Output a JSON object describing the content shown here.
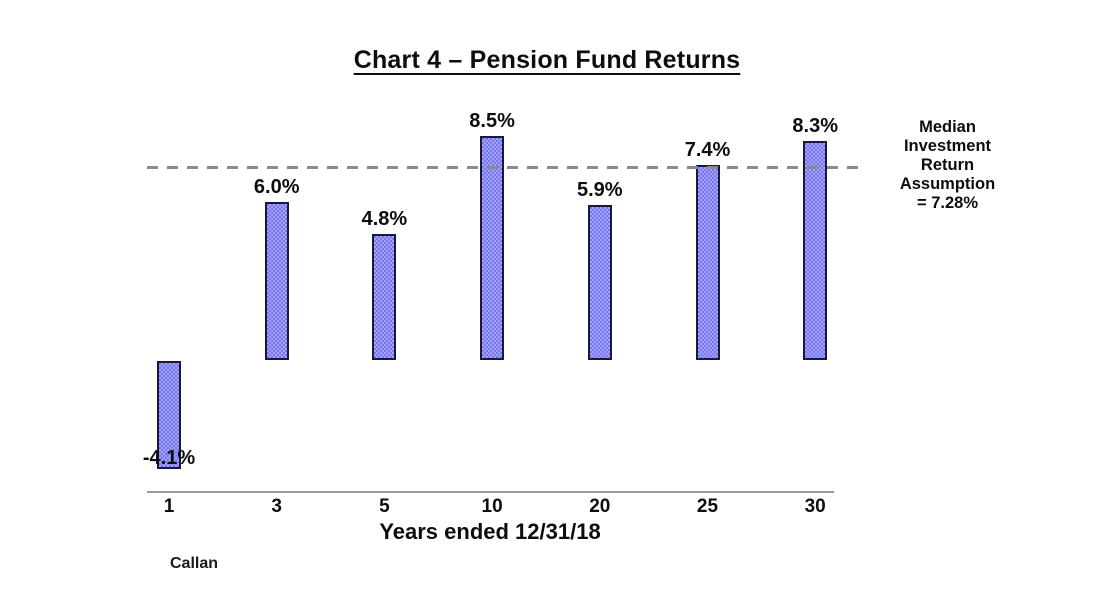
{
  "title": "Chart 4 – Pension Fund Returns",
  "source_label": "Callan",
  "chart_data": {
    "type": "bar",
    "title": "Chart 4 – Pension Fund Returns",
    "categories": [
      "1",
      "3",
      "5",
      "10",
      "20",
      "25",
      "30"
    ],
    "values": [
      -4.1,
      6.0,
      4.8,
      8.5,
      5.9,
      7.4,
      8.3
    ],
    "value_labels": [
      "-4.1%",
      "6.0%",
      "4.8%",
      "8.5%",
      "5.9%",
      "7.4%",
      "8.3%"
    ],
    "xlabel": "Years ended 12/31/18",
    "ylim": [
      -5.5,
      9.5
    ],
    "grid": false,
    "legend": "none",
    "reference_line": {
      "value": 7.28,
      "style": "dashed",
      "label_lines": [
        "Median",
        "Investment",
        "Return",
        "Assumption",
        "= 7.28%"
      ]
    },
    "source": "Callan",
    "colors": {
      "bar_fill_light": "#a0a0ff",
      "bar_fill_dark": "#7878e8",
      "bar_border": "#18183c",
      "dash_line": "#8a8a8a",
      "axis_line": "#9a9a9a",
      "text": "#0d0d0d"
    }
  }
}
